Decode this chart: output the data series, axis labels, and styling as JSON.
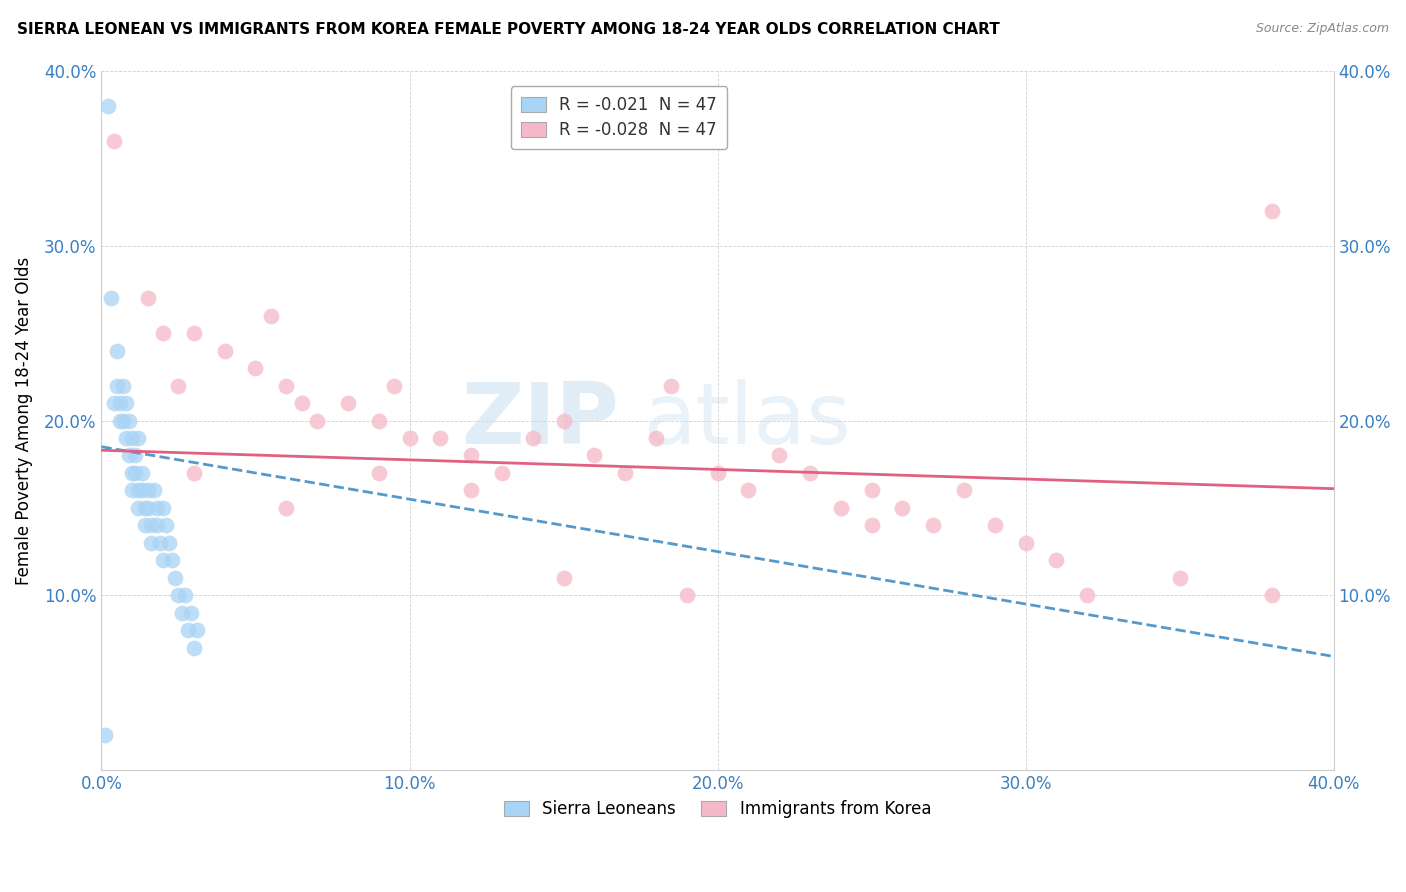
{
  "title": "SIERRA LEONEAN VS IMMIGRANTS FROM KOREA FEMALE POVERTY AMONG 18-24 YEAR OLDS CORRELATION CHART",
  "source": "Source: ZipAtlas.com",
  "ylabel": "Female Poverty Among 18-24 Year Olds",
  "xlim": [
    0.0,
    0.4
  ],
  "ylim": [
    0.0,
    0.4
  ],
  "xtick_labels": [
    "0.0%",
    "10.0%",
    "20.0%",
    "30.0%",
    "40.0%"
  ],
  "xtick_vals": [
    0.0,
    0.1,
    0.2,
    0.3,
    0.4
  ],
  "ytick_labels": [
    "10.0%",
    "20.0%",
    "30.0%",
    "40.0%"
  ],
  "ytick_vals": [
    0.1,
    0.2,
    0.3,
    0.4
  ],
  "legend_r_blue": "-0.021",
  "legend_n_blue": "47",
  "legend_r_pink": "-0.028",
  "legend_n_pink": "47",
  "blue_color": "#a8d4f5",
  "pink_color": "#f5b8c8",
  "blue_line_color": "#5599cc",
  "pink_line_color": "#e06080",
  "watermark_zip": "ZIP",
  "watermark_atlas": "atlas",
  "blue_intercept": 0.185,
  "blue_slope": -0.3,
  "pink_intercept": 0.183,
  "pink_slope": -0.055,
  "blue_points_x": [
    0.002,
    0.003,
    0.004,
    0.005,
    0.005,
    0.006,
    0.006,
    0.007,
    0.007,
    0.008,
    0.008,
    0.009,
    0.009,
    0.01,
    0.01,
    0.01,
    0.011,
    0.011,
    0.012,
    0.012,
    0.012,
    0.013,
    0.013,
    0.014,
    0.014,
    0.015,
    0.015,
    0.016,
    0.016,
    0.017,
    0.018,
    0.018,
    0.019,
    0.02,
    0.02,
    0.021,
    0.022,
    0.023,
    0.024,
    0.025,
    0.026,
    0.027,
    0.028,
    0.029,
    0.03,
    0.031,
    0.001
  ],
  "blue_points_y": [
    0.38,
    0.27,
    0.21,
    0.22,
    0.24,
    0.21,
    0.2,
    0.2,
    0.22,
    0.19,
    0.21,
    0.18,
    0.2,
    0.17,
    0.19,
    0.16,
    0.18,
    0.17,
    0.16,
    0.19,
    0.15,
    0.17,
    0.16,
    0.15,
    0.14,
    0.16,
    0.15,
    0.14,
    0.13,
    0.16,
    0.15,
    0.14,
    0.13,
    0.12,
    0.15,
    0.14,
    0.13,
    0.12,
    0.11,
    0.1,
    0.09,
    0.1,
    0.08,
    0.09,
    0.07,
    0.08,
    0.02
  ],
  "pink_points_x": [
    0.004,
    0.015,
    0.02,
    0.025,
    0.03,
    0.04,
    0.05,
    0.055,
    0.06,
    0.065,
    0.07,
    0.08,
    0.09,
    0.095,
    0.1,
    0.11,
    0.12,
    0.13,
    0.14,
    0.15,
    0.16,
    0.17,
    0.18,
    0.185,
    0.2,
    0.21,
    0.22,
    0.23,
    0.24,
    0.25,
    0.25,
    0.26,
    0.27,
    0.28,
    0.29,
    0.3,
    0.31,
    0.32,
    0.35,
    0.38,
    0.03,
    0.06,
    0.09,
    0.12,
    0.15,
    0.19,
    0.38
  ],
  "pink_points_y": [
    0.36,
    0.27,
    0.25,
    0.22,
    0.25,
    0.24,
    0.23,
    0.26,
    0.22,
    0.21,
    0.2,
    0.21,
    0.2,
    0.22,
    0.19,
    0.19,
    0.18,
    0.17,
    0.19,
    0.2,
    0.18,
    0.17,
    0.19,
    0.22,
    0.17,
    0.16,
    0.18,
    0.17,
    0.15,
    0.16,
    0.14,
    0.15,
    0.14,
    0.16,
    0.14,
    0.13,
    0.12,
    0.1,
    0.11,
    0.32,
    0.17,
    0.15,
    0.17,
    0.16,
    0.11,
    0.1,
    0.1
  ]
}
